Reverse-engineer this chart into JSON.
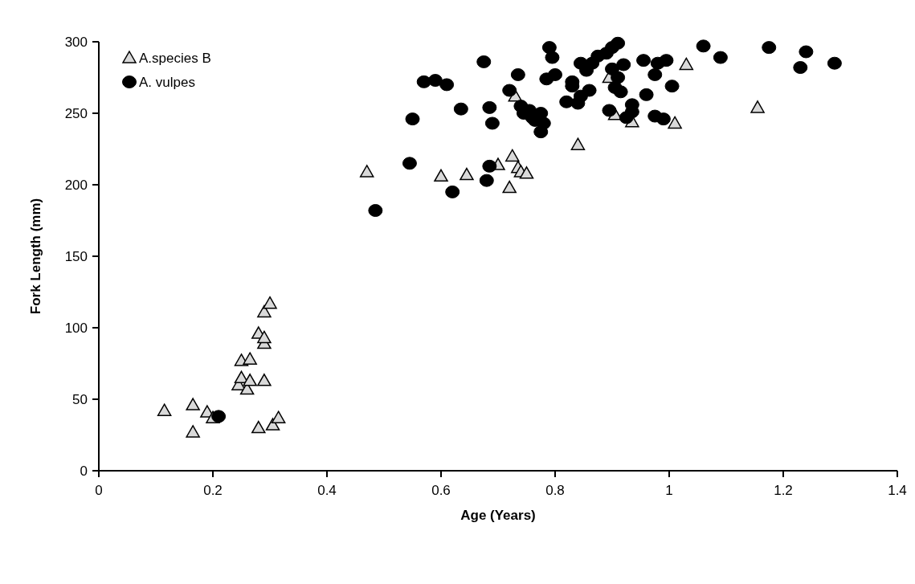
{
  "chart_data": {
    "type": "scatter",
    "xlabel": "Age (Years)",
    "ylabel": "Fork Length (mm)",
    "xlim": [
      0,
      1.4
    ],
    "xticks": [
      0,
      0.2,
      0.4,
      0.6,
      0.8,
      1,
      1.2,
      1.4
    ],
    "ylim": [
      0,
      300
    ],
    "yticks": [
      0,
      50,
      100,
      150,
      200,
      250,
      300
    ],
    "grid": false,
    "legend": "top left",
    "series": [
      {
        "name": "A.species B",
        "color": "#d9d9d9",
        "marker": "triangle",
        "x": [
          0.115,
          0.165,
          0.165,
          0.19,
          0.2,
          0.245,
          0.25,
          0.25,
          0.265,
          0.26,
          0.265,
          0.28,
          0.29,
          0.29,
          0.29,
          0.3,
          0.29,
          0.28,
          0.305,
          0.315,
          0.47,
          0.6,
          0.645,
          0.7,
          0.72,
          0.725,
          0.735,
          0.74,
          0.75,
          0.73,
          0.84,
          0.895,
          0.905,
          0.935,
          1.01,
          1.03,
          1.155
        ],
        "values": [
          42,
          46,
          27,
          41,
          37,
          60,
          65,
          77,
          78,
          57,
          63,
          96,
          89,
          93,
          111,
          117,
          63,
          30,
          32,
          37,
          209,
          206,
          207,
          214,
          198,
          220,
          212,
          209,
          208,
          262,
          228,
          275,
          249,
          244,
          243,
          284,
          254
        ]
      },
      {
        "name": "A. vulpes",
        "color": "#000000",
        "marker": "circle",
        "x": [
          0.21,
          0.485,
          0.545,
          0.55,
          0.57,
          0.59,
          0.61,
          0.62,
          0.635,
          0.675,
          0.68,
          0.685,
          0.685,
          0.69,
          0.72,
          0.735,
          0.74,
          0.745,
          0.755,
          0.76,
          0.765,
          0.775,
          0.775,
          0.78,
          0.785,
          0.79,
          0.795,
          0.8,
          0.82,
          0.83,
          0.83,
          0.84,
          0.845,
          0.845,
          0.855,
          0.86,
          0.865,
          0.875,
          0.89,
          0.895,
          0.9,
          0.9,
          0.905,
          0.91,
          0.91,
          0.915,
          0.92,
          0.925,
          0.935,
          0.935,
          0.955,
          0.96,
          0.975,
          0.975,
          0.98,
          0.99,
          0.995,
          1.005,
          1.06,
          1.09,
          1.175,
          1.23,
          1.24,
          1.29
        ],
        "values": [
          38,
          182,
          215,
          246,
          272,
          273,
          270,
          195,
          253,
          286,
          203,
          254,
          213,
          243,
          266,
          277,
          255,
          250,
          252,
          247,
          245,
          250,
          237,
          243,
          274,
          296,
          289,
          277,
          258,
          272,
          269,
          257,
          262,
          285,
          280,
          266,
          285,
          290,
          292,
          252,
          281,
          296,
          268,
          275,
          299,
          265,
          284,
          247,
          251,
          256,
          287,
          263,
          248,
          277,
          285,
          246,
          287,
          269,
          297,
          289,
          296,
          282,
          293,
          285
        ]
      }
    ]
  }
}
